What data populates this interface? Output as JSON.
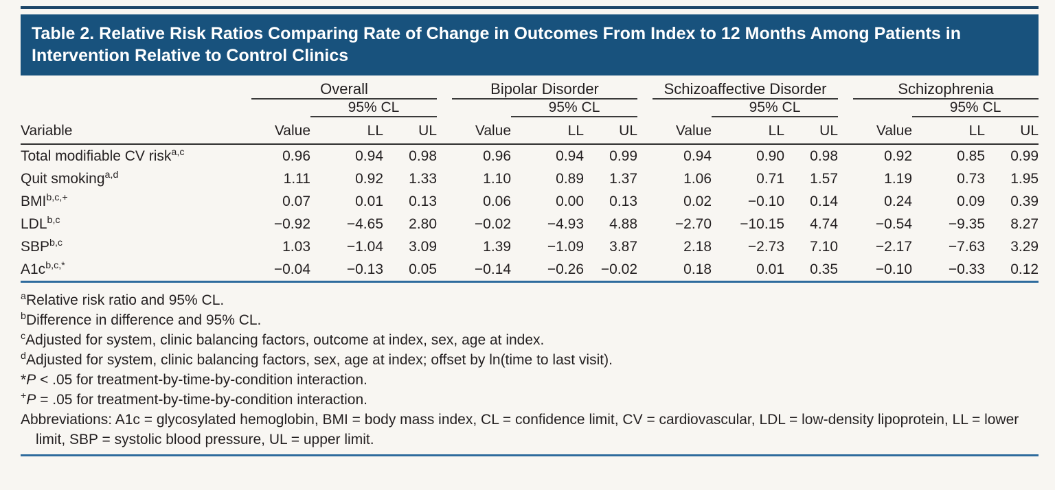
{
  "title": "Table 2. Relative Risk Ratios Comparing Rate of Change in Outcomes From Index to 12 Months Among Patients in Intervention Relative to Control Clinics",
  "colors": {
    "title_bar": "#18527d",
    "top_rule": "#1e4668",
    "blue_rule": "#2e6b9d",
    "dark_rule": "#2e2e2e",
    "background": "#f8f6f2",
    "text": "#231f20"
  },
  "table": {
    "groups": [
      {
        "label": "Overall"
      },
      {
        "label": "Bipolar Disorder"
      },
      {
        "label": "Schizoaffective Disorder"
      },
      {
        "label": "Schizophrenia"
      }
    ],
    "cl_header": "95% CL",
    "col_headers": {
      "variable": "Variable",
      "value": "Value",
      "ll": "LL",
      "ul": "UL"
    },
    "rows": [
      {
        "label": "Total modifiable CV risk",
        "sup": "a,c",
        "values": [
          "0.96",
          "0.94",
          "0.98",
          "0.96",
          "0.94",
          "0.99",
          "0.94",
          "0.90",
          "0.98",
          "0.92",
          "0.85",
          "0.99"
        ]
      },
      {
        "label": "Quit smoking",
        "sup": "a,d",
        "values": [
          "1.11",
          "0.92",
          "1.33",
          "1.10",
          "0.89",
          "1.37",
          "1.06",
          "0.71",
          "1.57",
          "1.19",
          "0.73",
          "1.95"
        ]
      },
      {
        "label": "BMI",
        "sup": "b,c,+",
        "values": [
          "0.07",
          "0.01",
          "0.13",
          "0.06",
          "0.00",
          "0.13",
          "0.02",
          "−0.10",
          "0.14",
          "0.24",
          "0.09",
          "0.39"
        ]
      },
      {
        "label": "LDL",
        "sup": "b,c",
        "values": [
          "−0.92",
          "−4.65",
          "2.80",
          "−0.02",
          "−4.93",
          "4.88",
          "−2.70",
          "−10.15",
          "4.74",
          "−0.54",
          "−9.35",
          "8.27"
        ]
      },
      {
        "label": "SBP",
        "sup": "b,c",
        "values": [
          "1.03",
          "−1.04",
          "3.09",
          "1.39",
          "−1.09",
          "3.87",
          "2.18",
          "−2.73",
          "7.10",
          "−2.17",
          "−7.63",
          "3.29"
        ]
      },
      {
        "label": "A1c",
        "sup": "b,c,*",
        "values": [
          "−0.04",
          "−0.13",
          "0.05",
          "−0.14",
          "−0.26",
          "−0.02",
          "0.18",
          "0.01",
          "0.35",
          "−0.10",
          "−0.33",
          "0.12"
        ]
      }
    ]
  },
  "footnotes": {
    "a": {
      "marker": "a",
      "text": "Relative risk ratio and 95% CL."
    },
    "b": {
      "marker": "b",
      "text": "Difference in difference and 95% CL."
    },
    "c": {
      "marker": "c",
      "text": "Adjusted for system, clinic balancing factors, outcome at index, sex, age at index."
    },
    "d": {
      "marker": "d",
      "text": "Adjusted for system, clinic balancing factors, sex, age at index; offset by ln(time to last visit)."
    },
    "star": {
      "marker": "*",
      "p": "P",
      "text": " < .05 for treatment-by-time-by-condition interaction."
    },
    "plus": {
      "marker": "+",
      "p": "P",
      "text": " = .05 for treatment-by-time-by-condition interaction."
    },
    "abbrev": "Abbreviations: A1c = glycosylated hemoglobin, BMI = body mass index, CL = confidence limit, CV = cardiovascular, LDL = low-density lipoprotein, LL = lower limit, SBP = systolic blood pressure, UL = upper limit."
  }
}
